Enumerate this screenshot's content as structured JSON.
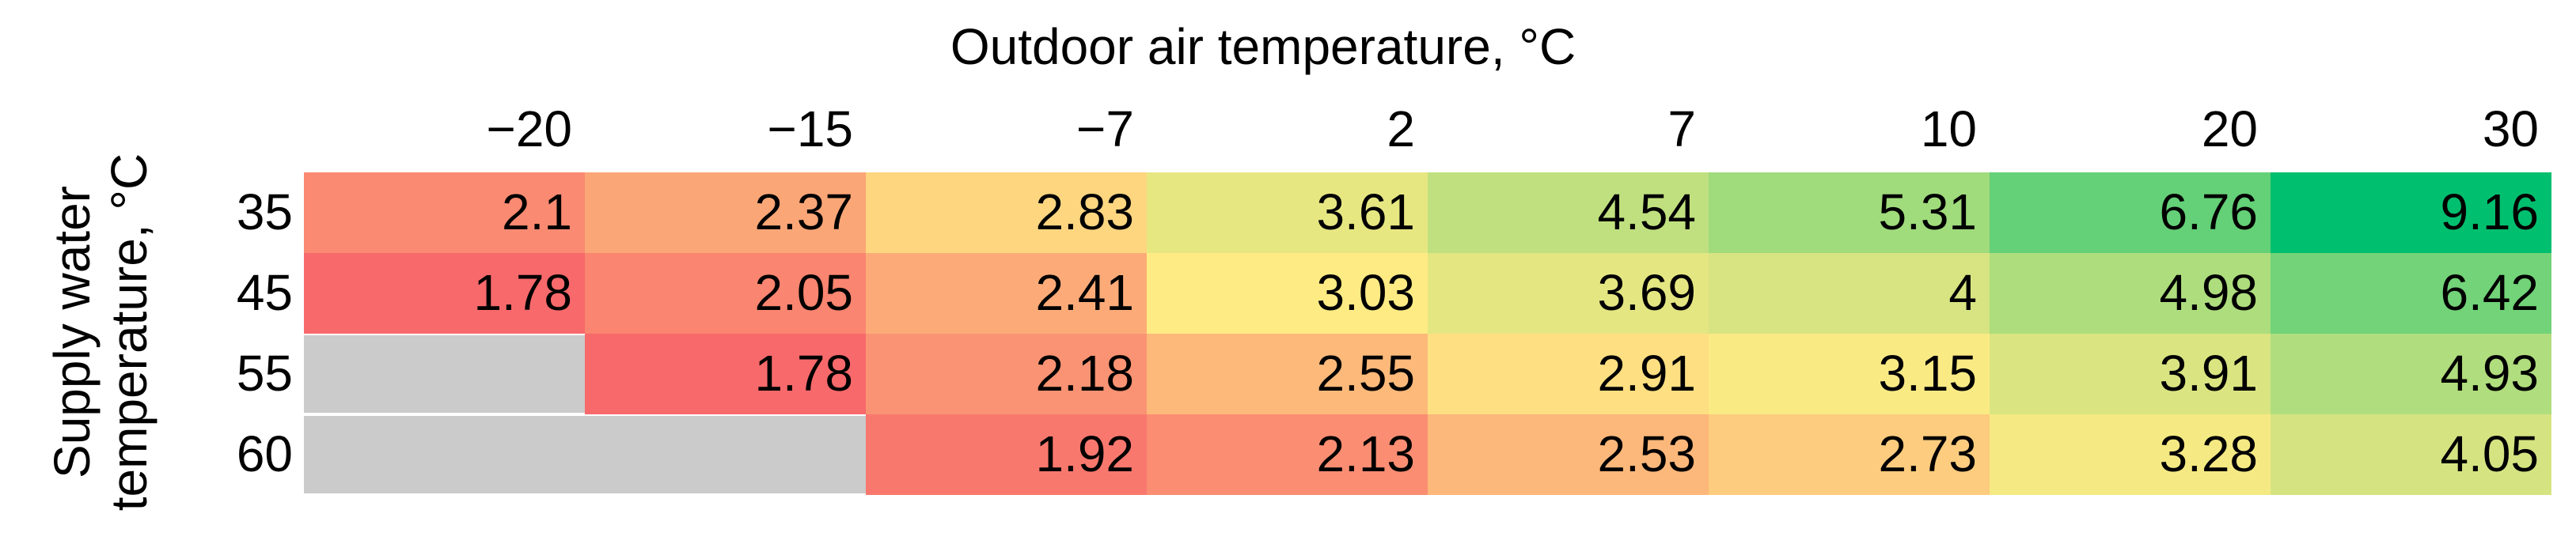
{
  "chart_data": {
    "type": "heatmap",
    "title": "Outdoor air temperature, °C",
    "ylabel": [
      "Supply  water",
      "temperature, °C"
    ],
    "columns": [
      "−20",
      "−15",
      "−7",
      "2",
      "7",
      "10",
      "20",
      "30"
    ],
    "rows": [
      "35",
      "45",
      "55",
      "60"
    ],
    "values": [
      [
        2.1,
        2.37,
        2.83,
        3.61,
        4.54,
        5.31,
        6.76,
        9.16
      ],
      [
        1.78,
        2.05,
        2.41,
        3.03,
        3.69,
        4,
        4.98,
        6.42
      ],
      [
        null,
        1.78,
        2.18,
        2.55,
        2.91,
        3.15,
        3.91,
        4.93
      ],
      [
        null,
        null,
        1.92,
        2.13,
        2.53,
        2.73,
        3.28,
        4.05
      ]
    ],
    "color_scale": [
      "#F8696B",
      "#FFEB84",
      "#00BF6F"
    ],
    "missing_color": "#CBCBCB"
  }
}
